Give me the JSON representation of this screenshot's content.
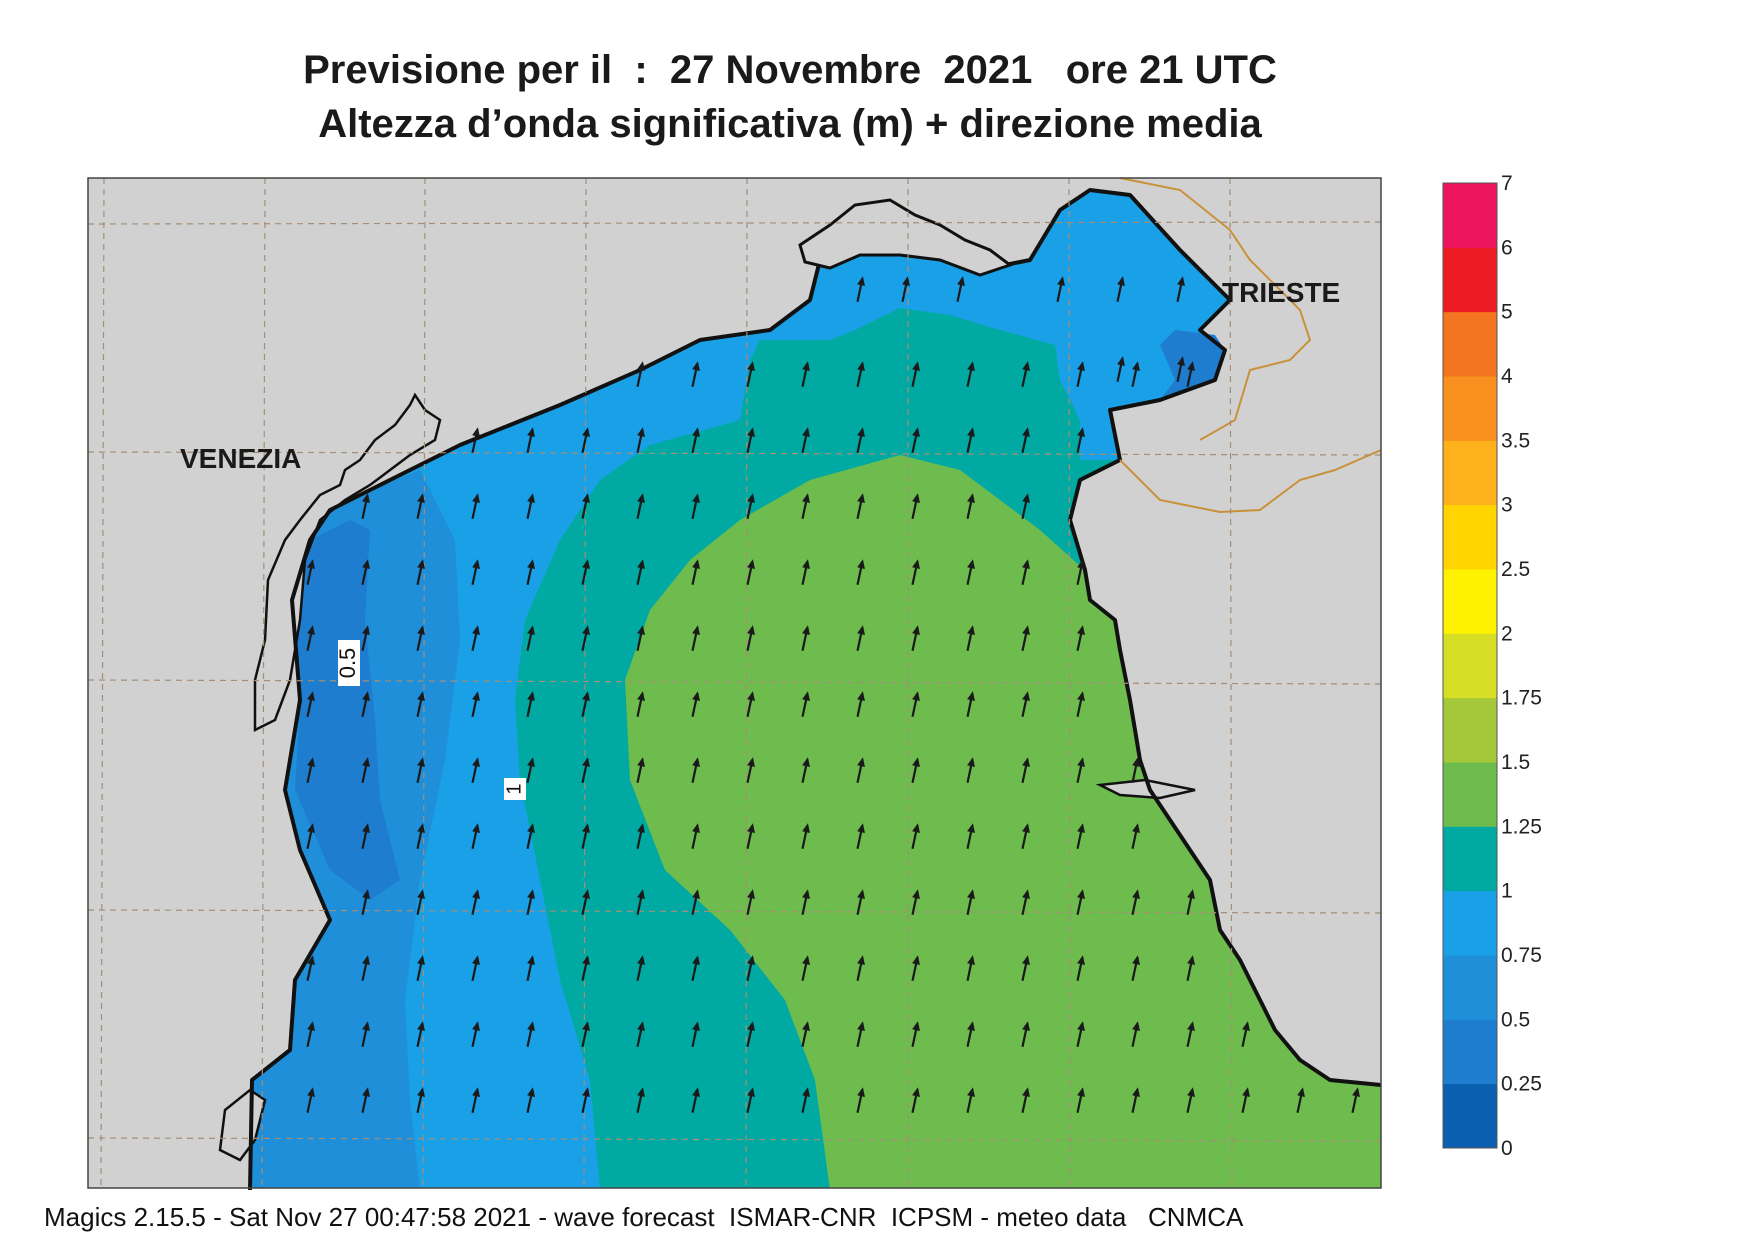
{
  "title_line1": "Previsione per il  :  27 Novembre  2021   ore 21 UTC",
  "title_line2": "Altezza d’onda significativa (m) + direzione media",
  "footer": "Magics 2.15.5 - Sat Nov 27 00:47:58 2021 - wave forecast  ISMAR-CNR  ICPSM - meteo data   CNMCA",
  "cities": [
    {
      "label": "VENEZIA"
    },
    {
      "label": "TRIESTE"
    }
  ],
  "contour_labels": [
    "0.5",
    "1"
  ],
  "legend": {
    "ticks": [
      "0",
      "0.25",
      "0.5",
      "0.75",
      "1",
      "1.25",
      "1.5",
      "1.75",
      "2",
      "2.5",
      "3",
      "3.5",
      "4",
      "5",
      "6",
      "7"
    ],
    "colors": [
      "#0a5fb0",
      "#1e7dcf",
      "#1f8fda",
      "#1aa0e6",
      "#00aaa3",
      "#6fbc4e",
      "#a5c83b",
      "#d6df26",
      "#fff200",
      "#ffd400",
      "#ffb11b",
      "#f7901e",
      "#f47520",
      "#ed1c24",
      "#ec145d"
    ]
  },
  "land_color": "#d1d1d1",
  "arrow_color": "#1a1a1a"
}
